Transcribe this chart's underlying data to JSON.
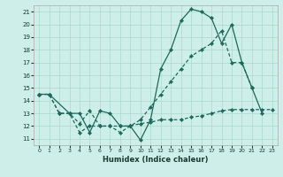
{
  "xlabel": "Humidex (Indice chaleur)",
  "bg_color": "#cdeee9",
  "grid_color": "#aad9cc",
  "line_color": "#1a6b5a",
  "xlim": [
    -0.5,
    23.5
  ],
  "ylim": [
    10.5,
    21.5
  ],
  "yticks": [
    11,
    12,
    13,
    14,
    15,
    16,
    17,
    18,
    19,
    20,
    21
  ],
  "xticks": [
    0,
    1,
    2,
    3,
    4,
    5,
    6,
    7,
    8,
    9,
    10,
    11,
    12,
    13,
    14,
    15,
    16,
    17,
    18,
    19,
    20,
    21,
    22,
    23
  ],
  "s1x": [
    0,
    1,
    3,
    4,
    5,
    6,
    7,
    8,
    9,
    10,
    11,
    12,
    13,
    14,
    15,
    16,
    17,
    18,
    19,
    20,
    21,
    22
  ],
  "s1y": [
    14.5,
    14.5,
    13.0,
    13.0,
    11.5,
    13.2,
    13.0,
    12.0,
    12.0,
    10.9,
    12.5,
    16.5,
    18.0,
    20.3,
    21.2,
    21.0,
    20.5,
    18.5,
    20.0,
    17.0,
    15.0,
    13.0
  ],
  "s2x": [
    0,
    1,
    2,
    3,
    4,
    5,
    6,
    7,
    8,
    9,
    10,
    11,
    12,
    13,
    14,
    15,
    16,
    17,
    18,
    19,
    20,
    21,
    22
  ],
  "s2y": [
    14.5,
    14.5,
    13.0,
    13.0,
    12.2,
    13.2,
    12.0,
    12.0,
    11.5,
    12.0,
    12.5,
    13.5,
    14.5,
    15.5,
    16.5,
    17.5,
    18.0,
    18.5,
    19.5,
    17.0,
    17.0,
    15.0,
    null
  ],
  "s3x": [
    0,
    1,
    2,
    3,
    4,
    5,
    6,
    7,
    8,
    9,
    10,
    11,
    12,
    13,
    14,
    15,
    16,
    17,
    18,
    19,
    20,
    21,
    22,
    23
  ],
  "s3y": [
    14.5,
    14.5,
    13.0,
    13.0,
    11.5,
    12.0,
    12.0,
    12.0,
    12.0,
    12.0,
    12.2,
    12.3,
    12.5,
    12.5,
    12.5,
    12.7,
    12.8,
    13.0,
    13.2,
    13.3,
    13.3,
    13.3,
    13.3,
    13.3
  ]
}
